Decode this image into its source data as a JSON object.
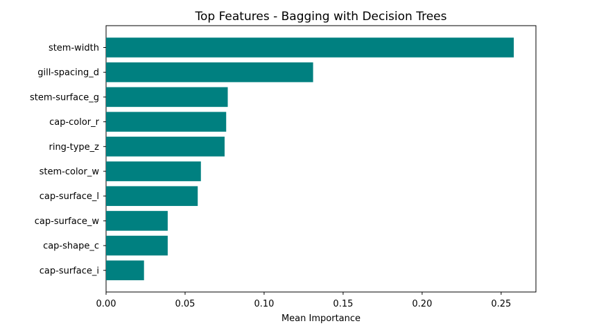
{
  "chart_data": {
    "type": "bar",
    "orientation": "horizontal",
    "title": "Top Features - Bagging with Decision Trees",
    "xlabel": "Mean Importance",
    "ylabel": "",
    "categories": [
      "stem-width",
      "gill-spacing_d",
      "stem-surface_g",
      "cap-color_r",
      "ring-type_z",
      "stem-color_w",
      "cap-surface_l",
      "cap-surface_w",
      "cap-shape_c",
      "cap-surface_i"
    ],
    "values": [
      0.258,
      0.131,
      0.077,
      0.076,
      0.075,
      0.06,
      0.058,
      0.039,
      0.039,
      0.024
    ],
    "xlim": [
      0,
      0.272
    ],
    "xticks": [
      "0.00",
      "0.05",
      "0.10",
      "0.15",
      "0.20",
      "0.25"
    ],
    "xtick_values": [
      0,
      0.05,
      0.1,
      0.15,
      0.2,
      0.25
    ],
    "grid": false,
    "legend": "none",
    "bar_color": "#008080"
  }
}
